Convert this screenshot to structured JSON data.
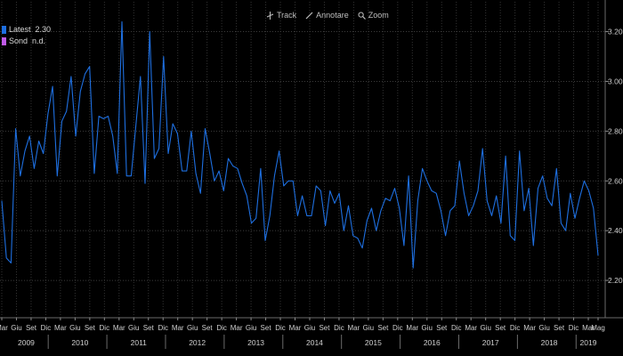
{
  "toolbar": {
    "track_label": "Track",
    "annotate_label": "Annotare",
    "zoom_label": "Zoom"
  },
  "legend": [
    {
      "name": "Latest",
      "value": "2.30",
      "color": "#1e6fe0"
    },
    {
      "name": "Sond",
      "value": "n.d.",
      "color": "#c05ae8"
    }
  ],
  "chart_data": {
    "type": "line",
    "title": "",
    "xlabel": "",
    "ylabel": "",
    "ylim": [
      2.05,
      3.32
    ],
    "yticks": [
      2.2,
      2.4,
      2.6,
      2.8,
      3.0,
      3.2
    ],
    "ytick_labels": [
      "2.20",
      "2.40",
      "2.60",
      "2.80",
      "3.00",
      "3.20"
    ],
    "grid": true,
    "legend_position": "top-left",
    "x_start": "2009-03",
    "x_end": "2019-05",
    "month_tick_labels": [
      "Mar",
      "Giu",
      "Set",
      "Dic",
      "Mar",
      "Giu",
      "Set",
      "Dic",
      "Mar",
      "Giu",
      "Set",
      "Dic",
      "Mar",
      "Giu",
      "Set",
      "Dic",
      "Mar",
      "Giu",
      "Set",
      "Dic",
      "Mar",
      "Giu",
      "Set",
      "Dic",
      "Mar",
      "Giu",
      "Set",
      "Dic",
      "Mar",
      "Giu",
      "Set",
      "Dic",
      "Mar",
      "Giu",
      "Set",
      "Dic",
      "Mar",
      "Giu",
      "Set",
      "Dic",
      "Mar",
      "Mag"
    ],
    "year_labels": [
      "2009",
      "2010",
      "2011",
      "2012",
      "2013",
      "2014",
      "2015",
      "2016",
      "2017",
      "2018",
      "2019"
    ],
    "series": [
      {
        "name": "Latest",
        "color": "#1e6fe0",
        "values": [
          2.52,
          2.29,
          2.27,
          2.81,
          2.62,
          2.72,
          2.78,
          2.65,
          2.76,
          2.71,
          2.87,
          2.98,
          2.62,
          2.84,
          2.88,
          3.02,
          2.78,
          2.96,
          3.03,
          3.06,
          2.63,
          2.86,
          2.85,
          2.86,
          2.78,
          2.63,
          3.24,
          2.62,
          2.62,
          2.82,
          3.02,
          2.59,
          3.2,
          2.69,
          2.73,
          3.1,
          2.71,
          2.83,
          2.79,
          2.64,
          2.64,
          2.8,
          2.63,
          2.55,
          2.81,
          2.71,
          2.6,
          2.64,
          2.56,
          2.69,
          2.66,
          2.65,
          2.59,
          2.54,
          2.43,
          2.45,
          2.65,
          2.36,
          2.46,
          2.62,
          2.72,
          2.58,
          2.6,
          2.6,
          2.46,
          2.54,
          2.46,
          2.46,
          2.58,
          2.56,
          2.42,
          2.56,
          2.51,
          2.55,
          2.4,
          2.5,
          2.38,
          2.37,
          2.33,
          2.44,
          2.49,
          2.4,
          2.48,
          2.53,
          2.52,
          2.57,
          2.49,
          2.34,
          2.62,
          2.25,
          2.52,
          2.65,
          2.6,
          2.56,
          2.55,
          2.48,
          2.38,
          2.48,
          2.5,
          2.68,
          2.55,
          2.46,
          2.5,
          2.56,
          2.73,
          2.52,
          2.46,
          2.54,
          2.43,
          2.7,
          2.38,
          2.36,
          2.72,
          2.48,
          2.57,
          2.34,
          2.57,
          2.62,
          2.53,
          2.5,
          2.65,
          2.43,
          2.4,
          2.55,
          2.45,
          2.53,
          2.6,
          2.56,
          2.49,
          2.3
        ]
      },
      {
        "name": "Sond",
        "color": "#c05ae8",
        "values": []
      }
    ]
  }
}
